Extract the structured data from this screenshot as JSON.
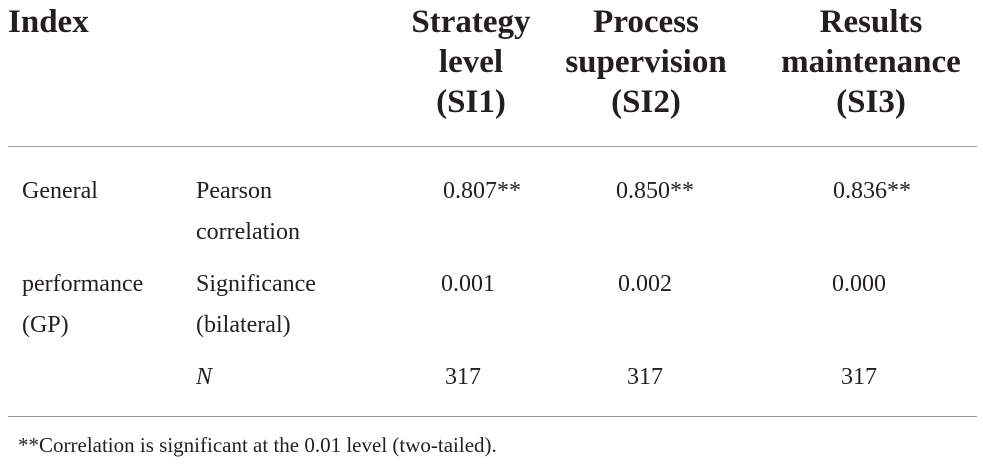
{
  "table": {
    "headers": {
      "index": "Index",
      "si1": [
        "Strategy",
        "level",
        "(SI1)"
      ],
      "si2": [
        "Process",
        "supervision",
        "(SI2)"
      ],
      "si3": [
        "Results",
        "maintenance",
        "(SI3)"
      ]
    },
    "row_group": [
      "General",
      "performance",
      "(GP)"
    ],
    "rows": [
      {
        "label": [
          "Pearson",
          "correlation"
        ],
        "si1": "0.807**",
        "si2": "0.850**",
        "si3": "0.836**"
      },
      {
        "label": [
          "Significance",
          "(bilateral)"
        ],
        "si1": "0.001",
        "si2": "0.002",
        "si3": "0.000"
      },
      {
        "label": [
          "N"
        ],
        "si1": "317",
        "si2": "317",
        "si3": "317"
      }
    ],
    "footnote": "**Correlation is significant at the 0.01 level (two-tailed)."
  }
}
